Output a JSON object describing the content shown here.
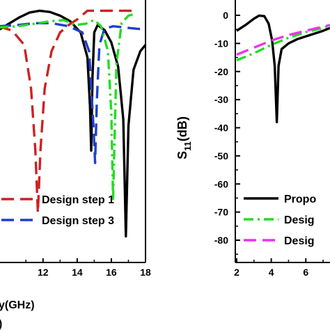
{
  "chart_data": [
    {
      "type": "line",
      "panel": "left",
      "xlabel_visible": "y(GHz)",
      "panel_label_visible": ")",
      "x_ticks": [
        "12",
        "14",
        "16",
        "18"
      ],
      "xlim": [
        9.4,
        18
      ],
      "ylim": [
        -40,
        2
      ],
      "series": [
        {
          "name": "",
          "color": "#000000",
          "dash": "solid",
          "points": [
            [
              9.4,
              -2.6
            ],
            [
              10.0,
              -1.6
            ],
            [
              10.6,
              -0.6
            ],
            [
              11.2,
              0.2
            ],
            [
              11.8,
              0.5
            ],
            [
              12.4,
              0.3
            ],
            [
              13.0,
              -0.3
            ],
            [
              13.6,
              -1.2
            ],
            [
              14.2,
              -3.0
            ],
            [
              14.6,
              -7.0
            ],
            [
              14.75,
              -15.0
            ],
            [
              14.82,
              -22.0
            ],
            [
              14.9,
              -10.0
            ],
            [
              15.0,
              -3.0
            ],
            [
              15.2,
              -1.8
            ],
            [
              15.6,
              -2.6
            ],
            [
              16.0,
              -4.6
            ],
            [
              16.4,
              -8.5
            ],
            [
              16.7,
              -17.0
            ],
            [
              16.85,
              -35.8
            ],
            [
              17.0,
              -18.0
            ],
            [
              17.3,
              -9.0
            ],
            [
              17.7,
              -6.0
            ],
            [
              18.0,
              -5.0
            ]
          ]
        },
        {
          "name": "Design step 1",
          "color": "#cc2222",
          "dash": "long",
          "points": [
            [
              9.4,
              -2.0
            ],
            [
              10.2,
              -2.7
            ],
            [
              10.9,
              -5.0
            ],
            [
              11.3,
              -12.0
            ],
            [
              11.55,
              -22.0
            ],
            [
              11.7,
              -32.0
            ],
            [
              11.85,
              -22.0
            ],
            [
              12.1,
              -12.0
            ],
            [
              12.5,
              -6.0
            ],
            [
              13.0,
              -3.0
            ],
            [
              13.6,
              -1.6
            ],
            [
              14.0,
              -0.9
            ],
            [
              14.6,
              0.5
            ],
            [
              15.4,
              0.5
            ],
            [
              16.4,
              0.5
            ],
            [
              17.2,
              0.5
            ]
          ]
        },
        {
          "name": "Design step 3",
          "color": "#1f3fcc",
          "dash": "long",
          "points": [
            [
              9.4,
              -2.0
            ],
            [
              10.5,
              -1.8
            ],
            [
              11.5,
              -1.5
            ],
            [
              12.5,
              -1.5
            ],
            [
              13.5,
              -2.0
            ],
            [
              14.3,
              -3.0
            ],
            [
              14.7,
              -6.0
            ],
            [
              14.95,
              -18.0
            ],
            [
              15.05,
              -24.0
            ],
            [
              15.15,
              -14.0
            ],
            [
              15.3,
              -5.0
            ],
            [
              15.6,
              -2.4
            ],
            [
              16.1,
              -2.0
            ],
            [
              16.8,
              -2.2
            ],
            [
              17.5,
              -2.4
            ],
            [
              18.0,
              -2.5
            ]
          ]
        },
        {
          "name": "",
          "color": "#22dd22",
          "dash": "dashdot",
          "points": [
            [
              9.4,
              -2.2
            ],
            [
              10.5,
              -2.0
            ],
            [
              11.5,
              -1.6
            ],
            [
              12.4,
              -1.2
            ],
            [
              13.2,
              -1.0
            ],
            [
              13.9,
              -1.8
            ],
            [
              14.5,
              -1.6
            ],
            [
              15.0,
              -1.0
            ],
            [
              15.4,
              -2.0
            ],
            [
              15.8,
              -6.0
            ],
            [
              16.0,
              -16.0
            ],
            [
              16.1,
              -30.0
            ],
            [
              16.3,
              -8.0
            ],
            [
              16.6,
              -1.5
            ],
            [
              17.0,
              -0.3
            ],
            [
              17.4,
              0.0
            ]
          ]
        }
      ]
    },
    {
      "type": "line",
      "panel": "right",
      "ylabel": "S11(dB)",
      "ylabel_main": "S",
      "ylabel_sub": "11",
      "ylabel_unit": "(dB)",
      "y_ticks": [
        "0",
        "-10",
        "-20",
        "-30",
        "-40",
        "-50",
        "-60",
        "-70",
        "-80"
      ],
      "x_ticks": [
        "2",
        "4",
        "6"
      ],
      "xlim": [
        2,
        7.4
      ],
      "ylim": [
        -86,
        5
      ],
      "series": [
        {
          "name": "Propo",
          "color": "#000000",
          "dash": "solid",
          "points": [
            [
              2.0,
              -5.5
            ],
            [
              2.5,
              -3.5
            ],
            [
              3.0,
              -1.2
            ],
            [
              3.3,
              -0.1
            ],
            [
              3.6,
              -0.3
            ],
            [
              3.85,
              -3.0
            ],
            [
              4.05,
              -9.0
            ],
            [
              4.2,
              -18.0
            ],
            [
              4.32,
              -38.0
            ],
            [
              4.42,
              -18.0
            ],
            [
              4.6,
              -12.0
            ],
            [
              5.0,
              -10.0
            ],
            [
              5.5,
              -8.5
            ],
            [
              6.0,
              -7.5
            ],
            [
              6.5,
              -6.5
            ],
            [
              7.0,
              -5.5
            ],
            [
              7.4,
              -4.5
            ]
          ]
        },
        {
          "name": "Desig",
          "color": "#22dd22",
          "dash": "dashdot",
          "points": [
            [
              2.0,
              -16.0
            ],
            [
              3.0,
              -13.5
            ],
            [
              4.0,
              -10.5
            ],
            [
              5.0,
              -8.0
            ],
            [
              6.0,
              -6.0
            ],
            [
              7.0,
              -4.5
            ],
            [
              7.4,
              -3.5
            ]
          ]
        },
        {
          "name": "Desig",
          "color": "#ee33ee",
          "dash": "long",
          "points": [
            [
              2.0,
              -14.0
            ],
            [
              3.0,
              -11.5
            ],
            [
              4.0,
              -9.0
            ],
            [
              5.0,
              -7.0
            ],
            [
              6.0,
              -5.5
            ],
            [
              7.0,
              -4.0
            ],
            [
              7.4,
              -3.5
            ]
          ]
        }
      ]
    }
  ]
}
